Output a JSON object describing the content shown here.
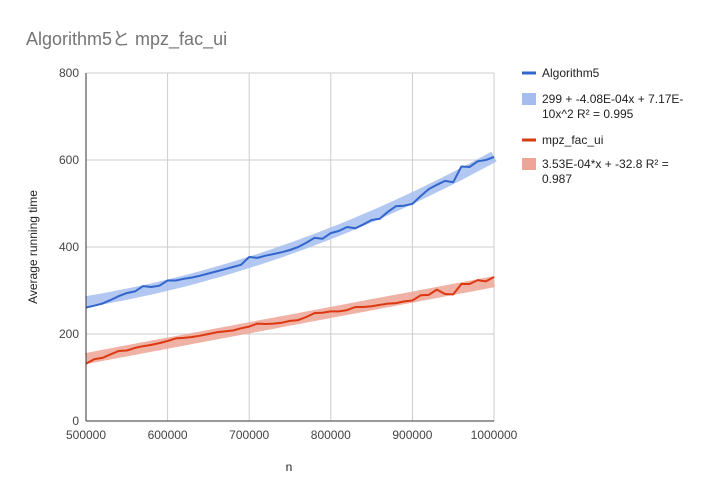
{
  "chart_data": {
    "type": "line",
    "title": "Algorithm5と mpz_fac_ui",
    "xlabel": "n",
    "ylabel": "Average running time",
    "xlim": [
      500000,
      1000000
    ],
    "ylim": [
      0,
      800
    ],
    "x_ticks": [
      "500000",
      "600000",
      "700000",
      "800000",
      "900000",
      "1000000"
    ],
    "y_ticks": [
      "0",
      "200",
      "400",
      "600",
      "800"
    ],
    "grid": true,
    "legend_position": "right",
    "x": [
      500000,
      510000,
      520000,
      530000,
      540000,
      550000,
      560000,
      570000,
      580000,
      590000,
      600000,
      610000,
      620000,
      630000,
      640000,
      650000,
      660000,
      670000,
      680000,
      690000,
      700000,
      710000,
      720000,
      730000,
      740000,
      750000,
      760000,
      770000,
      780000,
      790000,
      800000,
      810000,
      820000,
      830000,
      840000,
      850000,
      860000,
      870000,
      880000,
      890000,
      900000,
      910000,
      920000,
      930000,
      940000,
      950000,
      960000,
      970000,
      980000,
      990000,
      1000000
    ],
    "series": [
      {
        "name": "Algorithm5",
        "color": "#3366cc",
        "values": [
          261,
          265,
          270,
          278,
          287,
          294,
          298,
          310,
          308,
          311,
          323,
          323,
          327,
          330,
          334,
          339,
          344,
          349,
          354,
          359,
          377,
          375,
          380,
          384,
          388,
          393,
          400,
          410,
          421,
          419,
          432,
          437,
          446,
          443,
          452,
          462,
          465,
          481,
          494,
          495,
          499,
          517,
          533,
          543,
          552,
          549,
          585,
          584,
          597,
          600,
          607
        ]
      },
      {
        "name": "mpz_fac_ui",
        "color": "#dc3912",
        "values": [
          132,
          142,
          145,
          153,
          161,
          162,
          168,
          172,
          175,
          179,
          184,
          190,
          191,
          193,
          196,
          200,
          204,
          206,
          208,
          213,
          217,
          224,
          223,
          224,
          226,
          230,
          232,
          239,
          248,
          249,
          252,
          252,
          255,
          262,
          262,
          264,
          267,
          270,
          271,
          275,
          277,
          289,
          290,
          302,
          292,
          291,
          315,
          315,
          324,
          321,
          331
        ]
      }
    ],
    "trendlines": [
      {
        "name": "299 + -4.08E-04x + 7.17E-10x^2 R² = 0.995",
        "legend_lines": [
          "299 + -4.08E-04x + 7.17E-",
          "10x^2 R² = 0.995"
        ],
        "color": "#a4bdee",
        "coefficients": [
          299,
          -0.000408,
          7.17e-10
        ]
      },
      {
        "name": "3.53E-04*x + -32.8 R² = 0.987",
        "legend_lines": [
          "3.53E-04*x + -32.8 R² =",
          "0.987"
        ],
        "color": "#eea497",
        "coefficients": [
          -32.8,
          0.000353,
          0
        ]
      }
    ]
  }
}
